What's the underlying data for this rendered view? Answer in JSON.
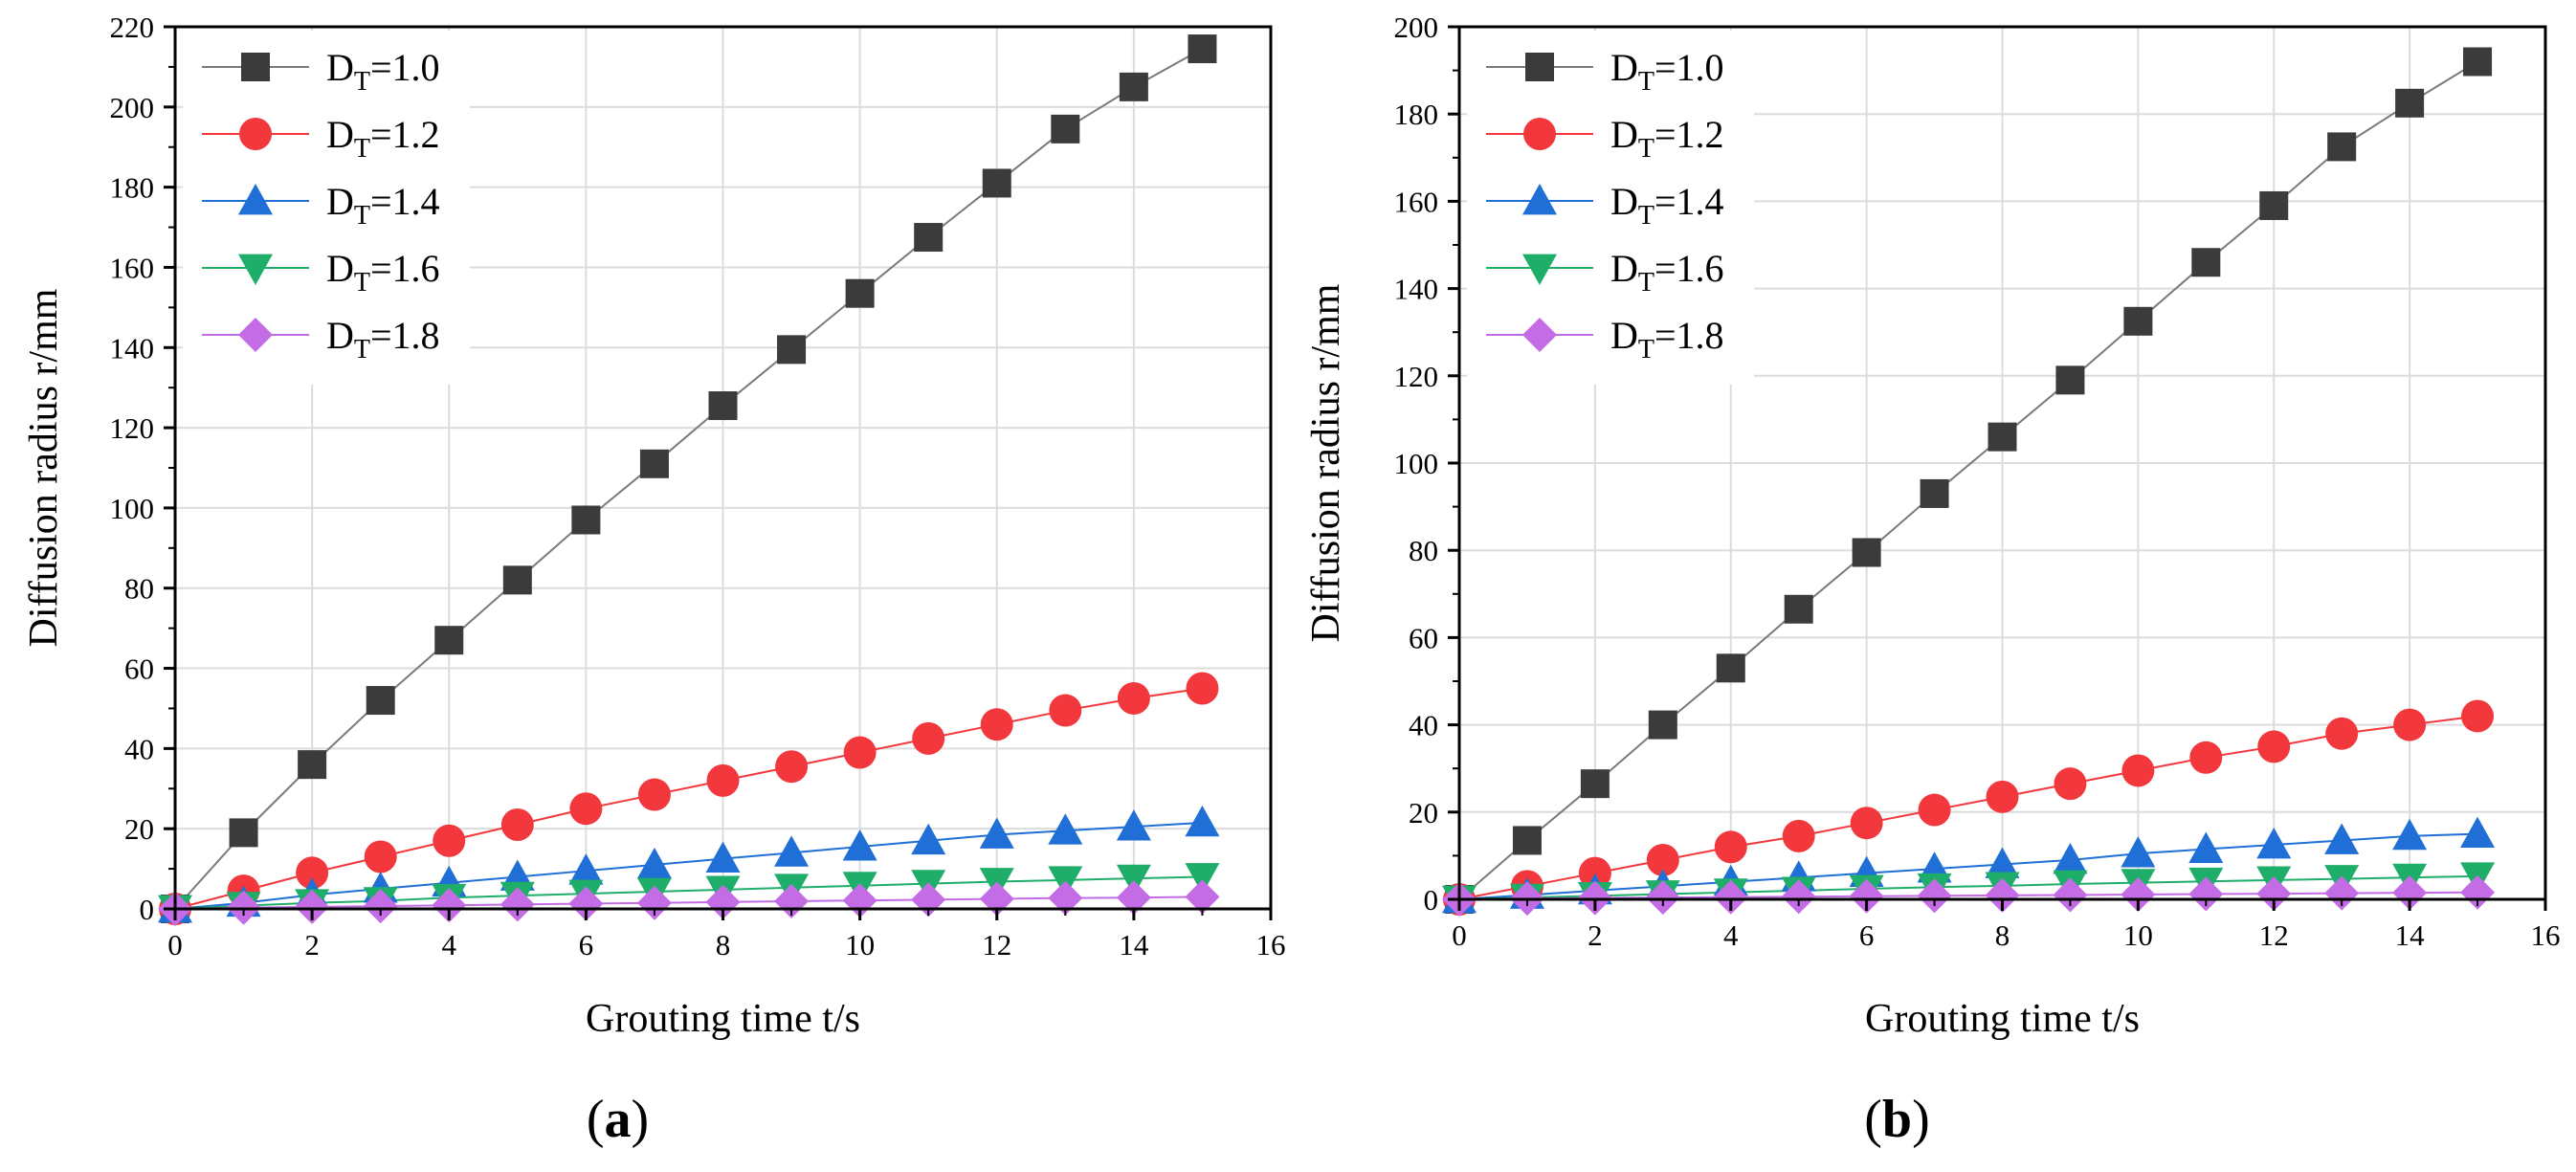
{
  "chart_data": [
    {
      "type": "line",
      "panel_label": "(a)",
      "panel_letter": "a",
      "xlabel": "Grouting time t/s",
      "ylabel": "Diffusion radius  r/mm",
      "xlim": [
        0,
        16
      ],
      "ylim": [
        0,
        220
      ],
      "xticks": [
        0,
        2,
        4,
        6,
        8,
        10,
        12,
        14,
        16
      ],
      "yticks": [
        0,
        20,
        40,
        60,
        80,
        100,
        120,
        140,
        160,
        180,
        200,
        220
      ],
      "grid": true,
      "legend_position": "top-left",
      "x": [
        0,
        1,
        2,
        3,
        4,
        5,
        6,
        7,
        8,
        9,
        10,
        11,
        12,
        13,
        14,
        15
      ],
      "series": [
        {
          "name": "DT=1.0",
          "label_main": "D",
          "label_sub": "T",
          "label_value": "=1.0",
          "marker": "square",
          "color": "#3b3b3b",
          "line_color": "#7a7a7a",
          "values": [
            0,
            19,
            36,
            52,
            67,
            82,
            97,
            111,
            125.5,
            139.5,
            153.5,
            167.5,
            181,
            194.5,
            205,
            214.5
          ]
        },
        {
          "name": "DT=1.2",
          "label_main": "D",
          "label_sub": "T",
          "label_value": "=1.2",
          "marker": "circle",
          "color": "#f2383c",
          "line_color": "#f2383c",
          "values": [
            0,
            4.5,
            9,
            13,
            17,
            21,
            25,
            28.5,
            32,
            35.5,
            39,
            42.5,
            46,
            49.5,
            52.5,
            55
          ]
        },
        {
          "name": "DT=1.4",
          "label_main": "D",
          "label_sub": "T",
          "label_value": "=1.4",
          "marker": "triangle-up",
          "color": "#1f6fd6",
          "line_color": "#1f6fd6",
          "values": [
            0,
            1.5,
            3.5,
            5,
            6.5,
            8,
            9.5,
            11,
            12.5,
            14,
            15.5,
            17,
            18.5,
            19.5,
            20.5,
            21.5
          ]
        },
        {
          "name": "DT=1.6",
          "label_main": "D",
          "label_sub": "T",
          "label_value": "=1.6",
          "marker": "triangle-down",
          "color": "#1fae6a",
          "line_color": "#1fae6a",
          "values": [
            0,
            0.8,
            1.5,
            2,
            2.8,
            3.3,
            3.8,
            4.3,
            4.8,
            5.3,
            5.8,
            6.3,
            6.8,
            7.2,
            7.6,
            8
          ]
        },
        {
          "name": "DT=1.8",
          "label_main": "D",
          "label_sub": "T",
          "label_value": "=1.8",
          "marker": "diamond",
          "color": "#c46be6",
          "line_color": "#c46be6",
          "values": [
            0,
            0.3,
            0.5,
            0.7,
            0.9,
            1.1,
            1.3,
            1.5,
            1.7,
            1.9,
            2.1,
            2.3,
            2.5,
            2.7,
            2.8,
            3
          ]
        }
      ]
    },
    {
      "type": "line",
      "panel_label": "(b)",
      "panel_letter": "b",
      "xlabel": "Grouting time t/s",
      "ylabel": "Diffusion radius  r/mm",
      "xlim": [
        0,
        16
      ],
      "ylim": [
        0,
        200
      ],
      "xticks": [
        0,
        2,
        4,
        6,
        8,
        10,
        12,
        14,
        16
      ],
      "yticks": [
        0,
        20,
        40,
        60,
        80,
        100,
        120,
        140,
        160,
        180,
        200
      ],
      "grid": true,
      "legend_position": "top-left",
      "x": [
        0,
        1,
        2,
        3,
        4,
        5,
        6,
        7,
        8,
        9,
        10,
        11,
        12,
        13,
        14,
        15
      ],
      "series": [
        {
          "name": "DT=1.0",
          "label_main": "D",
          "label_sub": "T",
          "label_value": "=1.0",
          "marker": "square",
          "color": "#3b3b3b",
          "line_color": "#7a7a7a",
          "values": [
            0,
            13.5,
            26.5,
            40,
            53,
            66.5,
            79.5,
            93,
            106,
            119,
            132.5,
            146,
            159,
            172.5,
            182.5,
            192
          ]
        },
        {
          "name": "DT=1.2",
          "label_main": "D",
          "label_sub": "T",
          "label_value": "=1.2",
          "marker": "circle",
          "color": "#f2383c",
          "line_color": "#f2383c",
          "values": [
            0,
            3,
            6,
            9,
            12,
            14.5,
            17.5,
            20.5,
            23.5,
            26.5,
            29.5,
            32.5,
            35,
            38,
            40,
            42
          ]
        },
        {
          "name": "DT=1.4",
          "label_main": "D",
          "label_sub": "T",
          "label_value": "=1.4",
          "marker": "triangle-up",
          "color": "#1f6fd6",
          "line_color": "#1f6fd6",
          "values": [
            0,
            1,
            2,
            3,
            4,
            5,
            6,
            7,
            8,
            9,
            10.5,
            11.5,
            12.5,
            13.5,
            14.5,
            15
          ]
        },
        {
          "name": "DT=1.6",
          "label_main": "D",
          "label_sub": "T",
          "label_value": "=1.6",
          "marker": "triangle-down",
          "color": "#1fae6a",
          "line_color": "#1fae6a",
          "values": [
            0,
            0.4,
            0.8,
            1.2,
            1.6,
            2,
            2.4,
            2.8,
            3.1,
            3.5,
            3.8,
            4.1,
            4.4,
            4.7,
            5,
            5.3
          ]
        },
        {
          "name": "DT=1.8",
          "label_main": "D",
          "label_sub": "T",
          "label_value": "=1.8",
          "marker": "diamond",
          "color": "#c46be6",
          "line_color": "#c46be6",
          "values": [
            0,
            0.2,
            0.3,
            0.4,
            0.5,
            0.6,
            0.7,
            0.8,
            0.9,
            1,
            1.1,
            1.2,
            1.3,
            1.4,
            1.5,
            1.6
          ]
        }
      ]
    }
  ]
}
